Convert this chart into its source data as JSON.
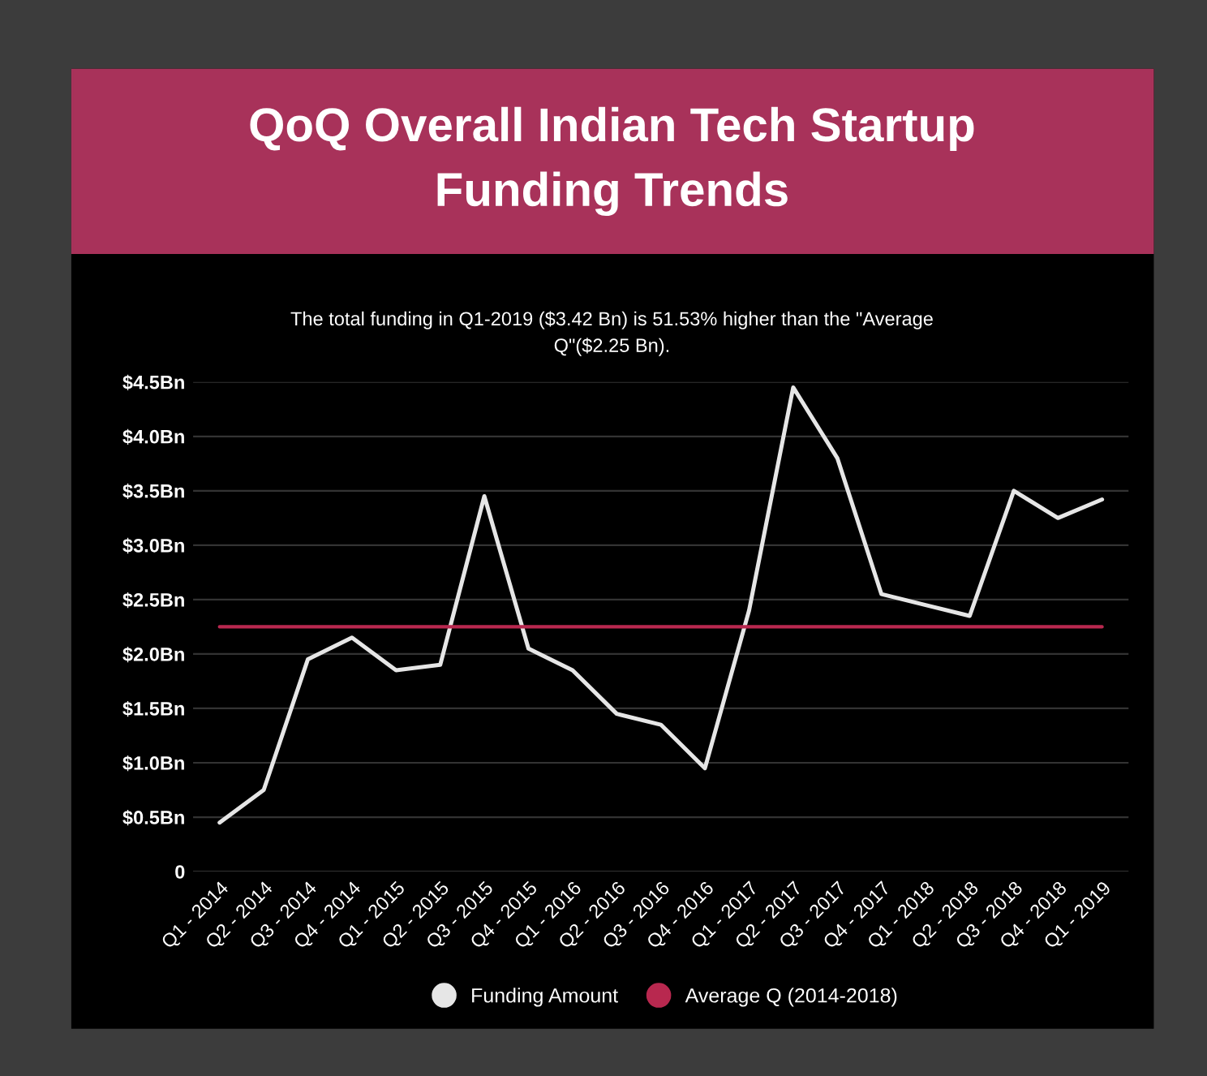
{
  "chart_data": {
    "type": "line",
    "title": "QoQ Overall Indian Tech Startup\nFunding Trends",
    "subtitle": "The total funding in Q1-2019 ($3.42 Bn) is 51.53% higher than the \"Average\nQ\"($2.25 Bn).",
    "categories": [
      "Q1 - 2014",
      "Q2 - 2014",
      "Q3 - 2014",
      "Q4 - 2014",
      "Q1 - 2015",
      "Q2 - 2015",
      "Q3 - 2015",
      "Q4 - 2015",
      "Q1 - 2016",
      "Q2 - 2016",
      "Q3 - 2016",
      "Q4 - 2016",
      "Q1 - 2017",
      "Q2 - 2017",
      "Q3 - 2017",
      "Q4 - 2017",
      "Q1 - 2018",
      "Q2 - 2018",
      "Q3 - 2018",
      "Q4 - 2018",
      "Q1 - 2019"
    ],
    "series": [
      {
        "name": "Funding Amount",
        "color": "#e6e6e6",
        "values": [
          0.45,
          0.75,
          1.95,
          2.15,
          1.85,
          1.9,
          3.45,
          2.05,
          1.85,
          1.45,
          1.35,
          0.95,
          2.4,
          4.45,
          3.8,
          2.55,
          2.45,
          2.35,
          3.5,
          3.25,
          3.42
        ]
      },
      {
        "name": "Average Q (2014-2018)",
        "color": "#b8284f",
        "values": [
          2.25,
          2.25,
          2.25,
          2.25,
          2.25,
          2.25,
          2.25,
          2.25,
          2.25,
          2.25,
          2.25,
          2.25,
          2.25,
          2.25,
          2.25,
          2.25,
          2.25,
          2.25,
          2.25,
          2.25,
          2.25
        ]
      }
    ],
    "ylim": [
      0,
      4.5
    ],
    "yticks": [
      {
        "value": 0,
        "label": "0"
      },
      {
        "value": 0.5,
        "label": "$0.5Bn"
      },
      {
        "value": 1.0,
        "label": "$1.0Bn"
      },
      {
        "value": 1.5,
        "label": "$1.5Bn"
      },
      {
        "value": 2.0,
        "label": "$2.0Bn"
      },
      {
        "value": 2.5,
        "label": "$2.5Bn"
      },
      {
        "value": 3.0,
        "label": "$3.0Bn"
      },
      {
        "value": 3.5,
        "label": "$3.5Bn"
      },
      {
        "value": 4.0,
        "label": "$4.0Bn"
      },
      {
        "value": 4.5,
        "label": "$4.5Bn"
      }
    ],
    "grid": "y",
    "legend": "bottom",
    "marker": "none",
    "line_style": "solid"
  }
}
